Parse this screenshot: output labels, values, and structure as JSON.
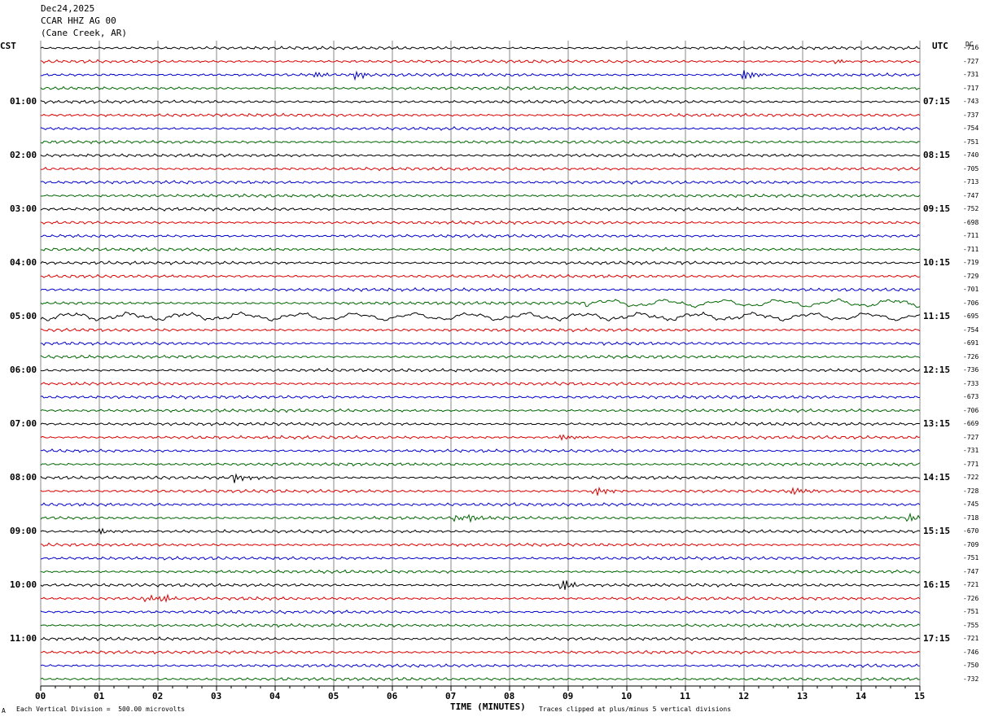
{
  "header": {
    "date": "Dec24,2025",
    "station": "CCAR HHZ AG 00",
    "location": "(Cane Creek, AR)"
  },
  "left_zone_label": "CST",
  "right_zone_label": "UTC",
  "dc_label": "DC",
  "footer": {
    "scale_note": "Each Vertical Division =  500.00 microvolts",
    "axis_title": "TIME (MINUTES)",
    "clip_note": "Traces clipped at plus/minus 5 vertical divisions",
    "corner_mark": "A"
  },
  "chart_data": {
    "type": "line",
    "title": "",
    "xlabel": "TIME (MINUTES)",
    "xlim": [
      0,
      15
    ],
    "x_ticks": [
      "00",
      "01",
      "02",
      "03",
      "04",
      "05",
      "06",
      "07",
      "08",
      "09",
      "10",
      "11",
      "12",
      "13",
      "14",
      "15"
    ],
    "rows_per_hour": 4,
    "trace_colors": [
      "#000000",
      "#dd0000",
      "#0000cc",
      "#006600"
    ],
    "grid_color": "#888888",
    "left_time_labels": [
      "01:00",
      "02:00",
      "03:00",
      "04:00",
      "05:00",
      "06:00",
      "07:00",
      "08:00",
      "09:00",
      "10:00",
      "11:00"
    ],
    "right_time_labels": [
      "07:15",
      "08:15",
      "09:15",
      "10:15",
      "11:15",
      "12:15",
      "13:15",
      "14:15",
      "15:15",
      "16:15",
      "17:15"
    ],
    "dc_offsets": [
      "-716",
      "-727",
      "-731",
      "-717",
      "-743",
      "-737",
      "-754",
      "-751",
      "-740",
      "-705",
      "-713",
      "-747",
      "-752",
      "-698",
      "-711",
      "-711",
      "-719",
      "-729",
      "-701",
      "-706",
      "-695",
      "-754",
      "-691",
      "-726",
      "-736",
      "-733",
      "-673",
      "-706",
      "-669",
      "-727",
      "-731",
      "-771",
      "-722",
      "-728",
      "-745",
      "-718",
      "-670",
      "-709",
      "-751",
      "-747",
      "-721",
      "-726",
      "-751",
      "-755",
      "-721",
      "-746",
      "-750",
      "-732"
    ],
    "events": [
      {
        "row": 2,
        "minute": 5.4,
        "amp": 1.4
      },
      {
        "row": 2,
        "minute": 12.0,
        "amp": 2.2
      },
      {
        "row": 2,
        "minute": 4.7,
        "amp": 1.0
      },
      {
        "row": 1,
        "minute": 13.6,
        "amp": 1.0
      },
      {
        "row": 20,
        "minute": 0.0,
        "amp": 0,
        "note": "long-period"
      },
      {
        "row": 19,
        "minute": 9.3,
        "amp": 0,
        "note": "long-period"
      },
      {
        "row": 29,
        "minute": 8.9,
        "amp": 1.3
      },
      {
        "row": 32,
        "minute": 3.3,
        "amp": 2.2
      },
      {
        "row": 33,
        "minute": 9.45,
        "amp": 2.3
      },
      {
        "row": 33,
        "minute": 12.85,
        "amp": 1.6
      },
      {
        "row": 35,
        "minute": 7.35,
        "amp": 1.5
      },
      {
        "row": 35,
        "minute": 14.8,
        "amp": 2.2
      },
      {
        "row": 35,
        "minute": 7.1,
        "amp": 1.0
      },
      {
        "row": 36,
        "minute": 1.0,
        "amp": 1.6
      },
      {
        "row": 40,
        "minute": 8.9,
        "amp": 2.6
      },
      {
        "row": 41,
        "minute": 1.8,
        "amp": 1.6
      },
      {
        "row": 41,
        "minute": 2.1,
        "amp": 1.3
      }
    ]
  }
}
